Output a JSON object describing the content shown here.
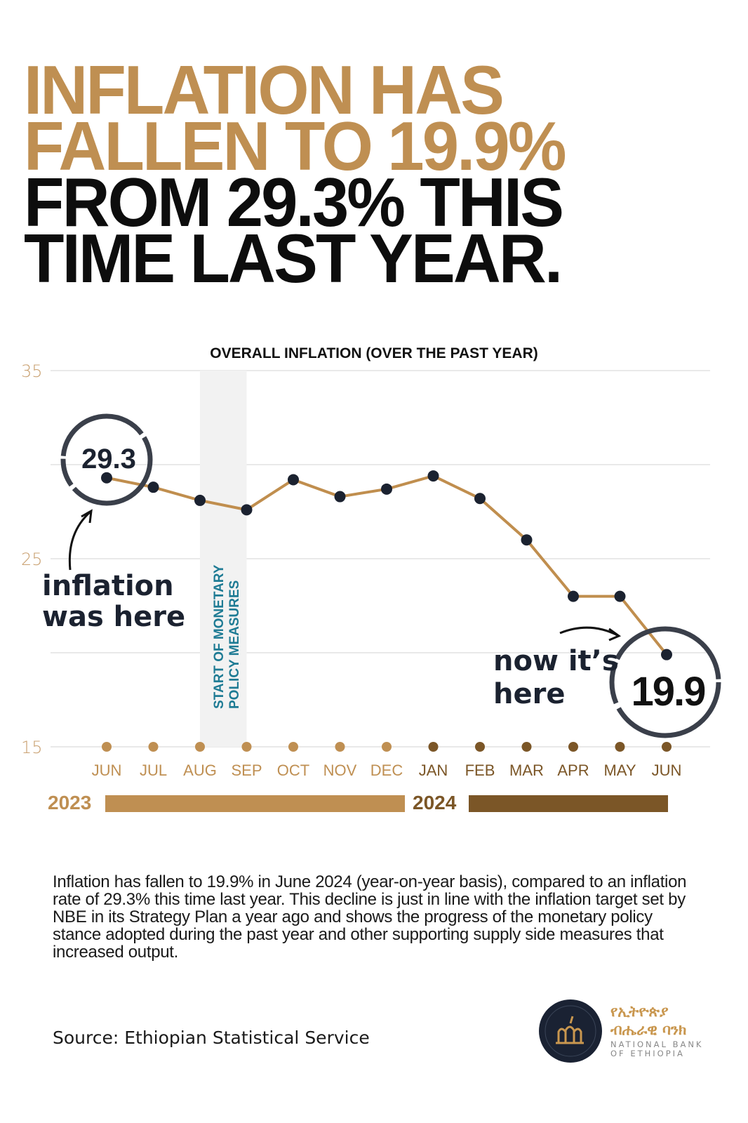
{
  "headline": {
    "line1": "INFLATION HAS",
    "line2": "FALLEN TO 19.9%",
    "line3": "FROM 29.3% THIS",
    "line4": "TIME LAST YEAR."
  },
  "colors": {
    "gold": "#bf8f52",
    "brown": "#7b5627",
    "dot": "#1b2230",
    "band": "#f2f2f2",
    "teal": "#1e7b94"
  },
  "chart_data": {
    "type": "line",
    "title": "OVERALL INFLATION (OVER THE PAST YEAR)",
    "categories": [
      "JUN",
      "JUL",
      "AUG",
      "SEP",
      "OCT",
      "NOV",
      "DEC",
      "JAN",
      "FEB",
      "MAR",
      "APR",
      "MAY",
      "JUN"
    ],
    "years": [
      {
        "label": "2023",
        "count": 7
      },
      {
        "label": "2024",
        "count": 6
      }
    ],
    "series": [
      {
        "name": "Overall inflation (%)",
        "values": [
          29.3,
          28.8,
          28.1,
          27.6,
          29.2,
          28.3,
          28.7,
          29.4,
          28.2,
          26.0,
          23.0,
          23.0,
          19.9
        ]
      }
    ],
    "ylim": [
      15,
      35
    ],
    "yticks": [
      "35",
      "25",
      "15"
    ],
    "gridlines": [
      35,
      30,
      25,
      20,
      15
    ],
    "band": {
      "from": "AUG",
      "to": "SEP",
      "label_line1": "START OF MONETARY",
      "label_line2": "POLICY MEASURES"
    },
    "annotations": {
      "start_value": "29.3",
      "start_note_1": "inflation",
      "start_note_2": "was here",
      "end_value": "19.9",
      "end_note_1": "now it’s",
      "end_note_2": "here"
    }
  },
  "paragraph": "Inflation has fallen to 19.9% in June 2024 (year-on-year basis), compared to an inflation rate of 29.3% this time last year.  This decline is just in line with the inflation target set by NBE in its Strategy Plan a year ago and shows the progress of the monetary policy stance adopted during the past year and other supporting supply side measures that increased output.",
  "source": "Source: Ethiopian Statistical Service",
  "logo": {
    "amharic_1": "የኢትዮጵያ",
    "amharic_2": "ብሔራዊ ባንክ",
    "english_1": "NATIONAL BANK",
    "english_2": "OF ETHIOPIA"
  }
}
